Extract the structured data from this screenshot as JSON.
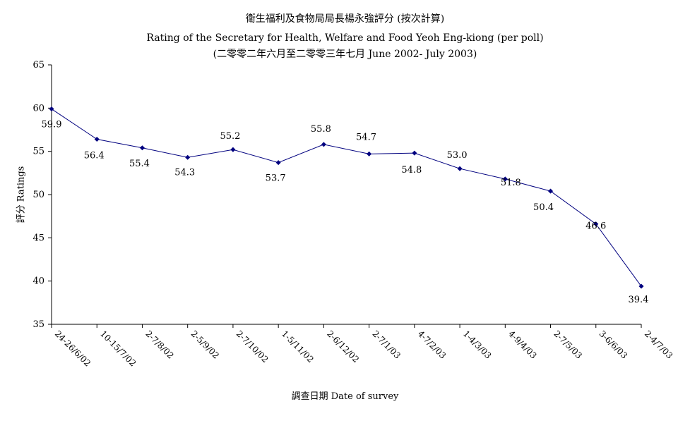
{
  "chart_data": {
    "type": "line",
    "title": "衛生福利及食物局局長楊永強評分 (按次計算)",
    "subtitle": "Rating of the Secretary for Health, Welfare and Food Yeoh Eng-kiong (per poll)",
    "subtitle2": "(二零零二年六月至二零零三年七月 June 2002- July 2003)",
    "xlabel": "調查日期 Date of survey",
    "ylabel": "評分 Ratings",
    "ylim": [
      35,
      65
    ],
    "yticks": [
      35,
      40,
      45,
      50,
      55,
      60,
      65
    ],
    "categories": [
      "24-26/6/02",
      "10-15/7/02",
      "2-7/8/02",
      "2-5/9/02",
      "2-7/10/02",
      "1-5/11/02",
      "2-6/12/02",
      "2-7/1/03",
      "4-7/2/03",
      "1-4/3/03",
      "4-9/4/03",
      "2-7/5/03",
      "3-6/6/03",
      "2-4/7/03"
    ],
    "series": [
      {
        "values": [
          59.9,
          56.4,
          55.4,
          54.3,
          55.2,
          53.7,
          55.8,
          54.7,
          54.8,
          53.0,
          51.8,
          50.4,
          46.6,
          39.4
        ],
        "labels": [
          "59.9",
          "56.4",
          "55.4",
          "54.3",
          "55.2",
          "53.7",
          "55.8",
          "54.7",
          "54.8",
          "53.0",
          "51.8",
          "50.4",
          "46.6",
          "39.4"
        ]
      }
    ],
    "grid": false,
    "legend": "none",
    "colors": {
      "line": "#00007f",
      "marker": "#00007f",
      "axis": "#000000"
    }
  }
}
